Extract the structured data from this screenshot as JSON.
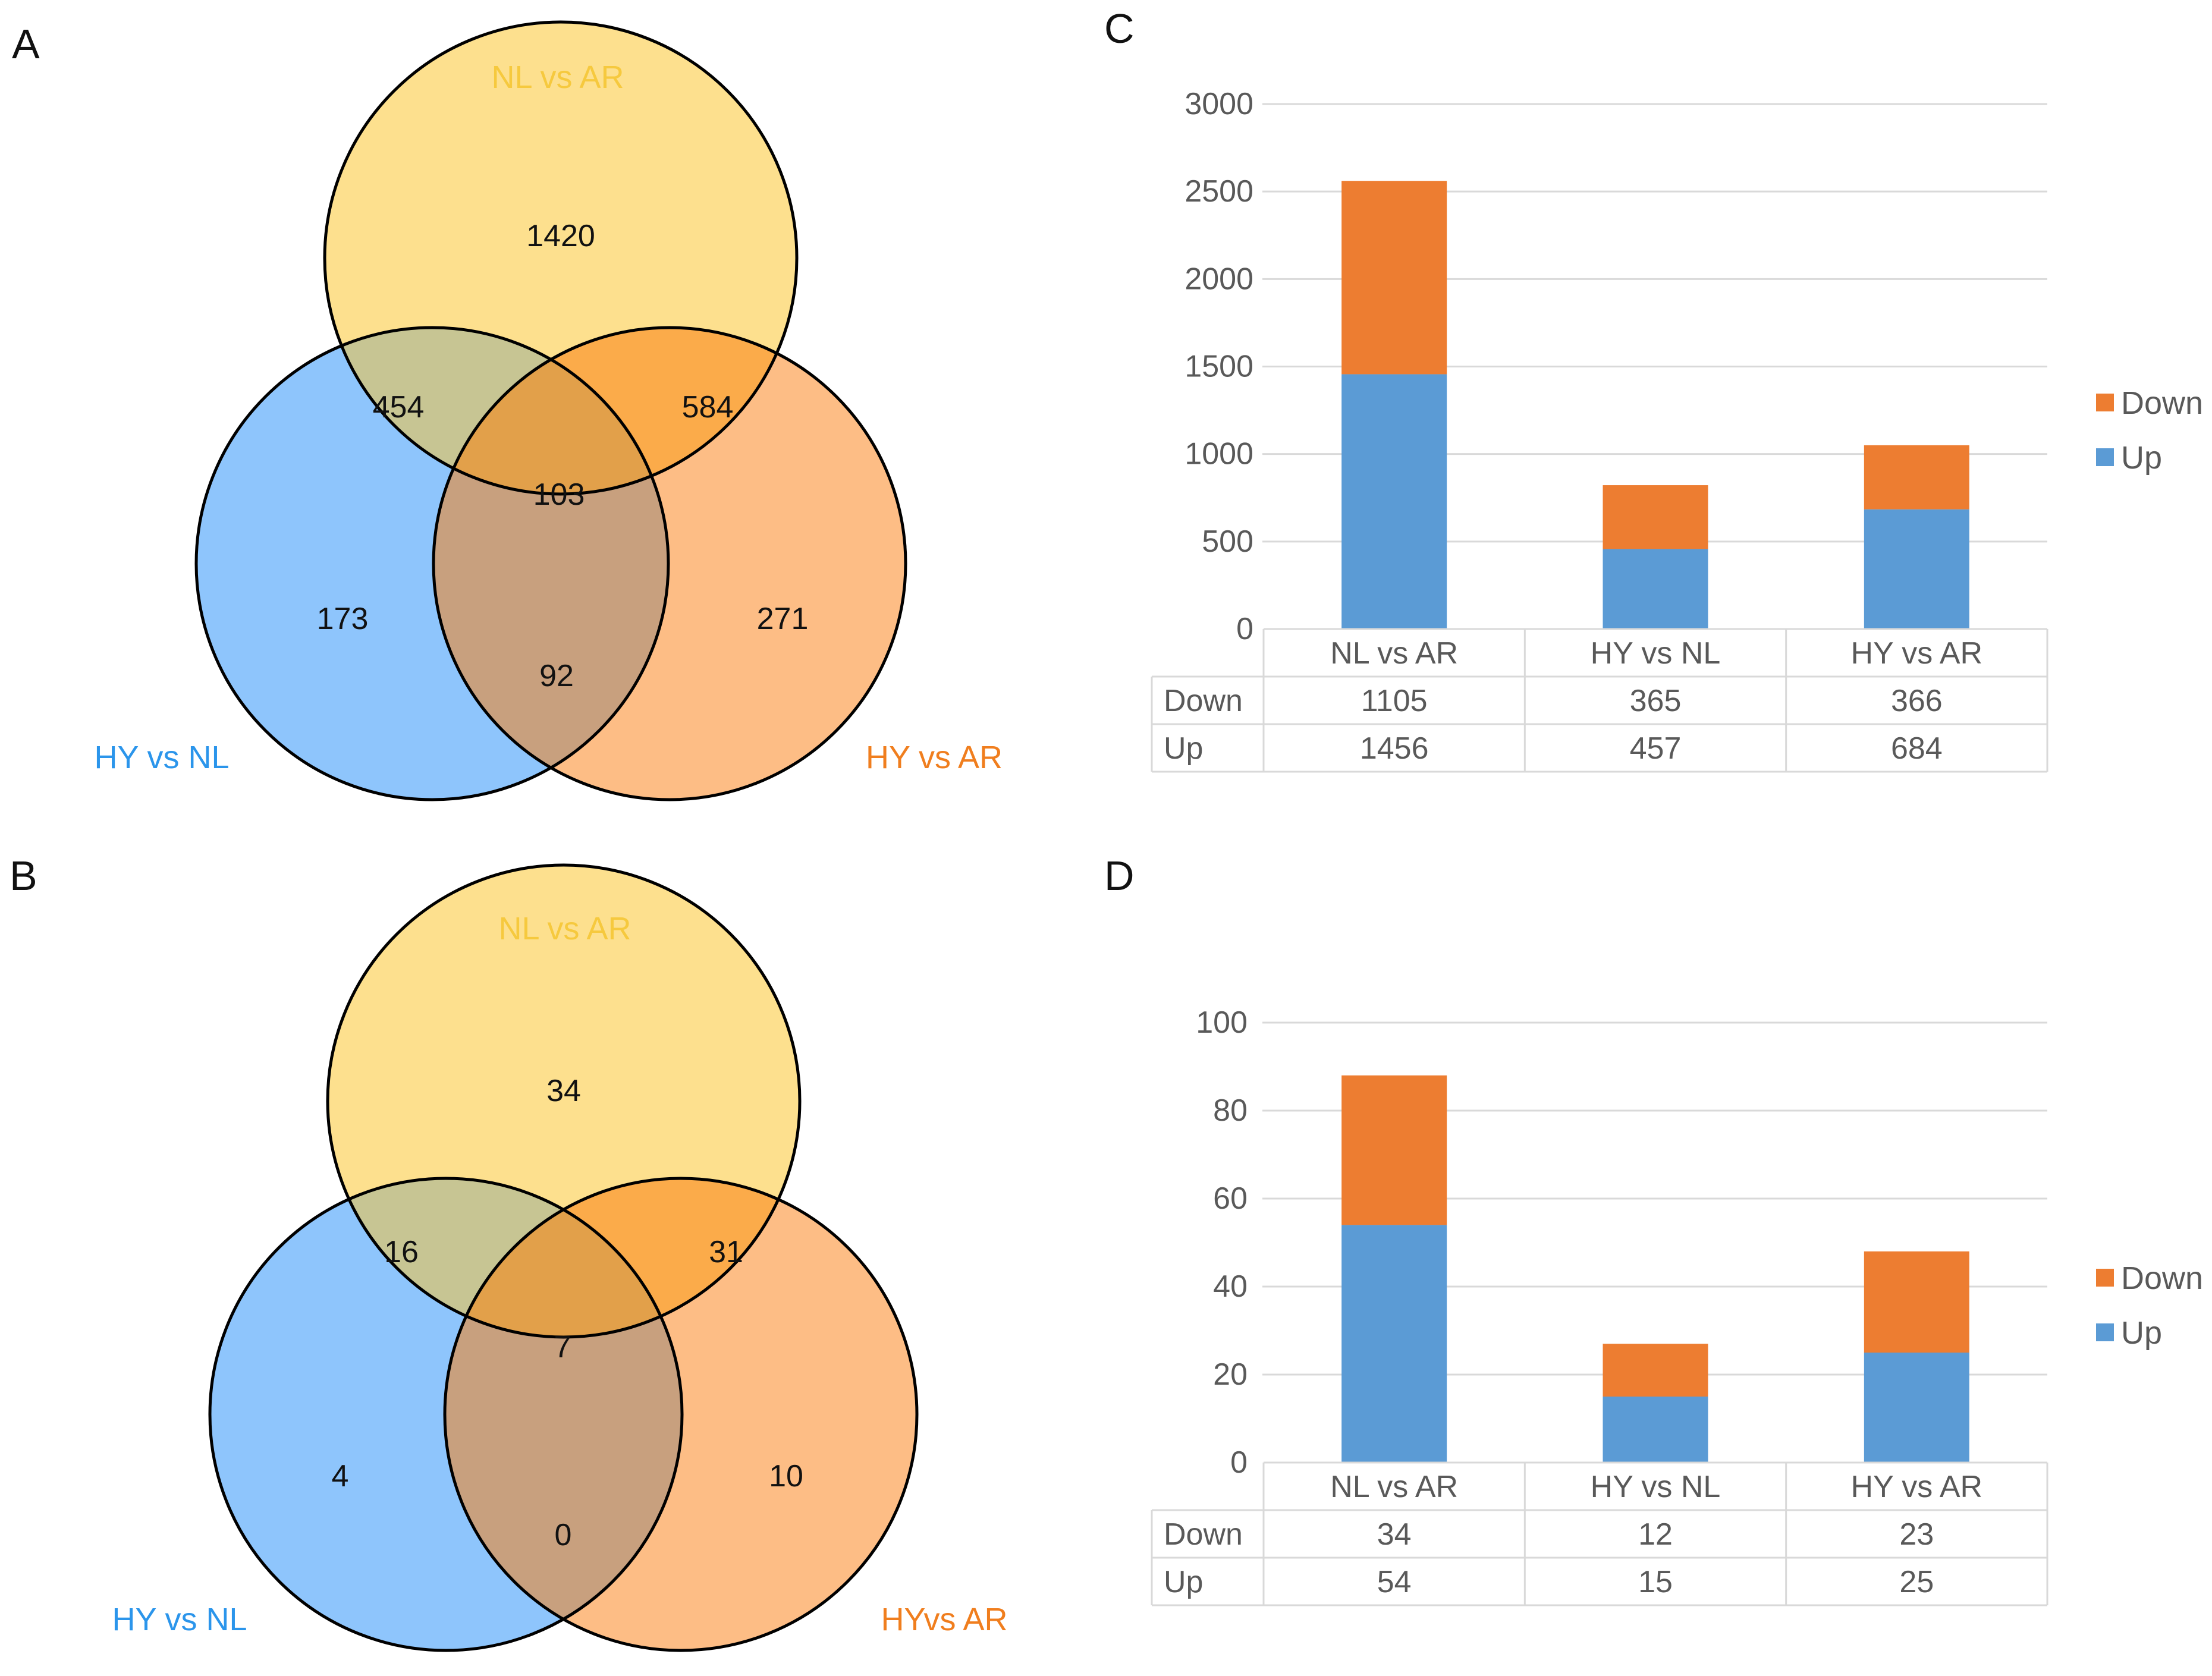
{
  "colors": {
    "venn_a": "#fde08e",
    "venn_b": "#8ec5fc",
    "venn_c": "#fdbd85",
    "ab": "#c7c593",
    "ac": "#fbab4a",
    "bc": "#c8a07e",
    "abc": "#e2a04a",
    "label_a": "#f6c93e",
    "label_b": "#2b95eb",
    "label_c": "#f07e1e",
    "down": "#ed7d31",
    "up": "#5b9bd5",
    "grid": "#d9d9d9",
    "text": "#595959"
  },
  "panel_a": {
    "label": "A",
    "sets": {
      "a": "NL vs AR",
      "b": "HY vs NL",
      "c": "HY vs AR"
    },
    "regions": {
      "a_only": "1420",
      "ab": "454",
      "ac": "584",
      "abc": "103",
      "b_only": "173",
      "c_only": "271",
      "bc": "92"
    }
  },
  "panel_b": {
    "label": "B",
    "sets": {
      "a": "NL vs AR",
      "b": "HY vs NL",
      "c": "HYvs AR"
    },
    "regions": {
      "a_only": "34",
      "ab": "16",
      "ac": "31",
      "abc": "7",
      "b_only": "4",
      "c_only": "10",
      "bc": "0"
    }
  },
  "chart_data": [
    {
      "panel": "C",
      "type": "bar",
      "stacked": true,
      "categories": [
        "NL vs AR",
        "HY vs NL",
        "HY vs AR"
      ],
      "series": [
        {
          "name": "Down",
          "values": [
            1105,
            365,
            366
          ]
        },
        {
          "name": "Up",
          "values": [
            1456,
            457,
            684
          ]
        }
      ],
      "yticks": [
        "3000",
        "2500",
        "2000",
        "1500",
        "1000",
        "500",
        "0"
      ],
      "ylim": [
        0,
        3000
      ],
      "legend": [
        "Down",
        "Up"
      ],
      "data_table": {
        "rows": [
          {
            "name": "Down",
            "cells": [
              "1105",
              "365",
              "366"
            ]
          },
          {
            "name": "Up",
            "cells": [
              "1456",
              "457",
              "684"
            ]
          }
        ]
      }
    },
    {
      "panel": "D",
      "type": "bar",
      "stacked": true,
      "categories": [
        "NL vs AR",
        "HY vs NL",
        "HY vs AR"
      ],
      "series": [
        {
          "name": "Down",
          "values": [
            34,
            12,
            23
          ]
        },
        {
          "name": "Up",
          "values": [
            54,
            15,
            25
          ]
        }
      ],
      "yticks": [
        "100",
        "80",
        "60",
        "40",
        "20",
        "0"
      ],
      "ylim": [
        0,
        100
      ],
      "legend": [
        "Down",
        "Up"
      ],
      "data_table": {
        "rows": [
          {
            "name": "Down",
            "cells": [
              "34",
              "12",
              "23"
            ]
          },
          {
            "name": "Up",
            "cells": [
              "54",
              "15",
              "25"
            ]
          }
        ]
      }
    }
  ]
}
